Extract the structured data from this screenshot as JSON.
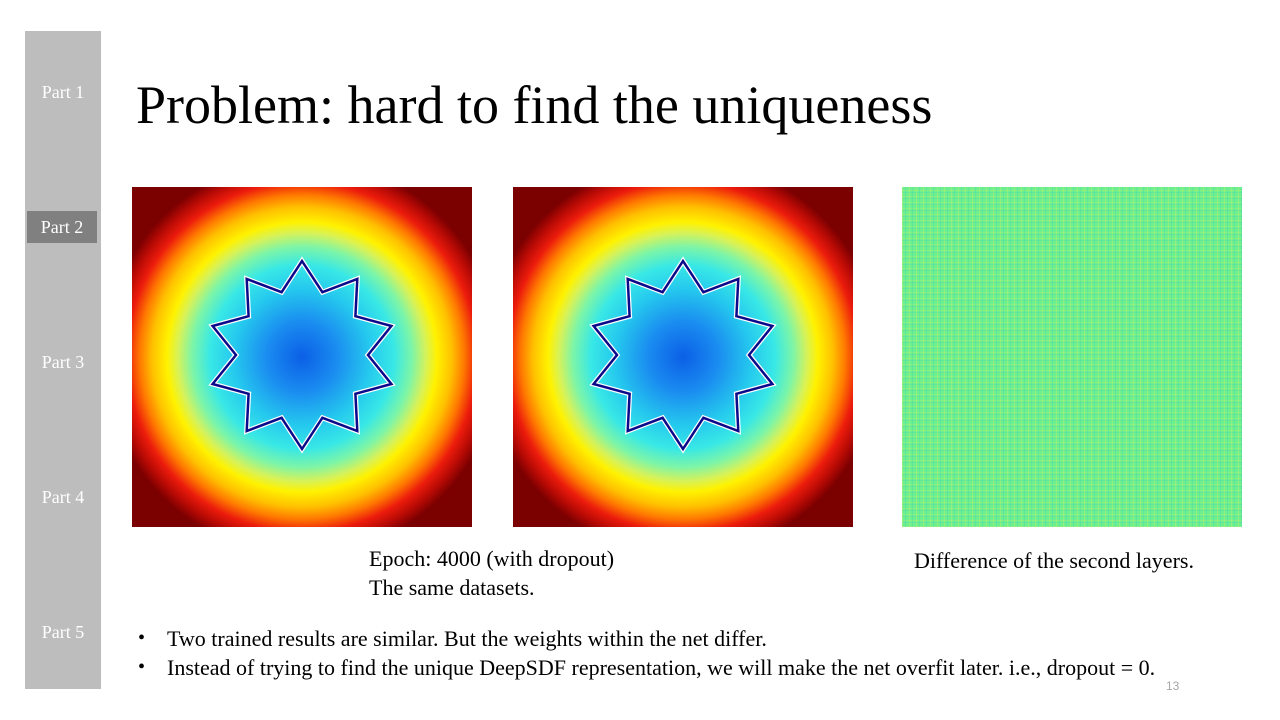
{
  "sidebar": {
    "items": [
      {
        "label": "Part 1",
        "active": false
      },
      {
        "label": "Part 2",
        "active": true
      },
      {
        "label": "Part 3",
        "active": false
      },
      {
        "label": "Part 4",
        "active": false
      },
      {
        "label": "Part 5",
        "active": false
      }
    ],
    "background": "#bdbdbd",
    "active_color": "#808080"
  },
  "slide": {
    "title": "Problem: hard to find the uniqueness",
    "caption_left_line1": "Epoch: 4000 (with dropout)",
    "caption_left_line2": "The same datasets.",
    "caption_right": "Difference of the second layers.",
    "bullets": [
      "Two trained results are similar. But the weights within the net differ.",
      "Instead of trying to find the unique DeepSDF representation, we will make the net overfit later. i.e., dropout = 0."
    ],
    "page_number": "13"
  },
  "images": {
    "left": {
      "icon": "sdf-heatmap-star"
    },
    "middle": {
      "icon": "sdf-heatmap-star"
    },
    "right": {
      "icon": "weight-difference-heatmap"
    }
  }
}
